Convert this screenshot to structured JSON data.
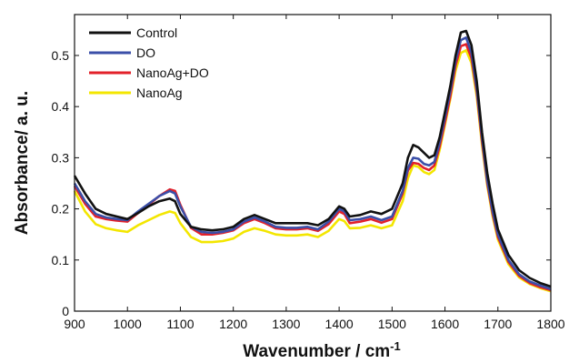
{
  "chart_data": {
    "type": "line",
    "title": "",
    "xlabel": "Wavenumber / cm",
    "xlabel_sup": "-1",
    "ylabel": "Absorbance/ a. u.",
    "xlim": [
      900,
      1800
    ],
    "ylim": [
      0,
      0.58
    ],
    "xticks": [
      900,
      1000,
      1100,
      1200,
      1300,
      1400,
      1500,
      1600,
      1700,
      1800
    ],
    "yticks": [
      0,
      0.1,
      0.2,
      0.3,
      0.4,
      0.5
    ],
    "ytick_labels": [
      "0",
      "0.1",
      "0.2",
      "0.3",
      "0.4",
      "0.5"
    ],
    "grid": false,
    "legend_position": "top-left",
    "x": [
      900,
      920,
      940,
      960,
      980,
      1000,
      1020,
      1040,
      1060,
      1080,
      1090,
      1100,
      1120,
      1140,
      1160,
      1180,
      1200,
      1220,
      1240,
      1260,
      1280,
      1300,
      1320,
      1340,
      1360,
      1380,
      1400,
      1410,
      1420,
      1440,
      1460,
      1480,
      1500,
      1520,
      1530,
      1540,
      1550,
      1560,
      1570,
      1580,
      1590,
      1600,
      1610,
      1620,
      1630,
      1640,
      1650,
      1660,
      1670,
      1680,
      1690,
      1700,
      1720,
      1740,
      1760,
      1780,
      1800
    ],
    "series": [
      {
        "name": "Control",
        "color": "#111111",
        "values": [
          0.265,
          0.23,
          0.2,
          0.19,
          0.185,
          0.18,
          0.192,
          0.205,
          0.215,
          0.22,
          0.215,
          0.19,
          0.165,
          0.16,
          0.158,
          0.16,
          0.165,
          0.18,
          0.188,
          0.18,
          0.172,
          0.172,
          0.172,
          0.172,
          0.168,
          0.18,
          0.205,
          0.2,
          0.185,
          0.188,
          0.195,
          0.19,
          0.2,
          0.25,
          0.3,
          0.325,
          0.32,
          0.31,
          0.3,
          0.305,
          0.34,
          0.39,
          0.44,
          0.5,
          0.545,
          0.548,
          0.52,
          0.45,
          0.35,
          0.27,
          0.21,
          0.16,
          0.11,
          0.08,
          0.065,
          0.055,
          0.048
        ]
      },
      {
        "name": "DO",
        "color": "#3b4fa8",
        "values": [
          0.25,
          0.215,
          0.19,
          0.183,
          0.18,
          0.178,
          0.195,
          0.21,
          0.225,
          0.235,
          0.23,
          0.205,
          0.165,
          0.155,
          0.153,
          0.155,
          0.16,
          0.175,
          0.183,
          0.175,
          0.165,
          0.163,
          0.163,
          0.165,
          0.16,
          0.175,
          0.2,
          0.195,
          0.178,
          0.18,
          0.185,
          0.178,
          0.185,
          0.235,
          0.28,
          0.3,
          0.298,
          0.288,
          0.285,
          0.292,
          0.33,
          0.38,
          0.43,
          0.49,
          0.53,
          0.535,
          0.505,
          0.435,
          0.34,
          0.255,
          0.195,
          0.15,
          0.1,
          0.072,
          0.058,
          0.05,
          0.043
        ]
      },
      {
        "name": "NanoAg+DO",
        "color": "#e2212a",
        "values": [
          0.245,
          0.21,
          0.185,
          0.18,
          0.177,
          0.175,
          0.192,
          0.208,
          0.225,
          0.238,
          0.235,
          0.208,
          0.163,
          0.15,
          0.15,
          0.153,
          0.158,
          0.172,
          0.18,
          0.172,
          0.162,
          0.16,
          0.16,
          0.162,
          0.157,
          0.17,
          0.195,
          0.19,
          0.172,
          0.175,
          0.18,
          0.173,
          0.18,
          0.23,
          0.275,
          0.29,
          0.288,
          0.28,
          0.276,
          0.285,
          0.322,
          0.37,
          0.42,
          0.48,
          0.518,
          0.522,
          0.495,
          0.428,
          0.332,
          0.25,
          0.19,
          0.145,
          0.096,
          0.069,
          0.055,
          0.047,
          0.041
        ]
      },
      {
        "name": "NanoAg",
        "color": "#f3e600",
        "values": [
          0.235,
          0.195,
          0.17,
          0.162,
          0.158,
          0.155,
          0.168,
          0.178,
          0.188,
          0.195,
          0.192,
          0.172,
          0.145,
          0.135,
          0.135,
          0.137,
          0.142,
          0.155,
          0.162,
          0.157,
          0.15,
          0.148,
          0.148,
          0.15,
          0.145,
          0.157,
          0.18,
          0.176,
          0.162,
          0.163,
          0.168,
          0.162,
          0.168,
          0.215,
          0.26,
          0.285,
          0.282,
          0.272,
          0.268,
          0.276,
          0.315,
          0.365,
          0.415,
          0.47,
          0.505,
          0.51,
          0.485,
          0.42,
          0.325,
          0.245,
          0.185,
          0.14,
          0.092,
          0.066,
          0.053,
          0.045,
          0.039
        ]
      }
    ]
  }
}
